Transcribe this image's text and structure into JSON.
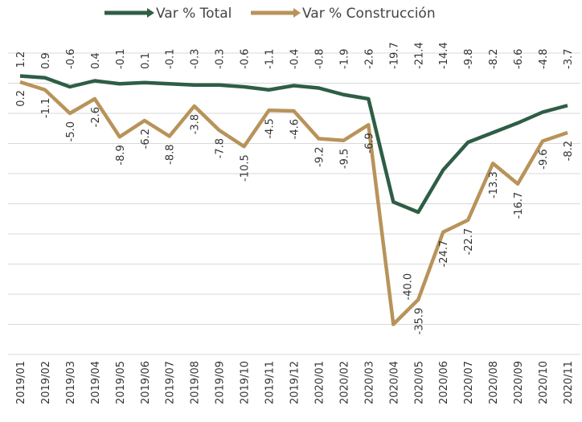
{
  "chart_data": {
    "type": "line",
    "categories": [
      "2019/01",
      "2019/02",
      "2019/03",
      "2019/04",
      "2019/05",
      "2019/06",
      "2019/07",
      "2019/08",
      "2019/09",
      "2019/10",
      "2019/11",
      "2019/12",
      "2020/01",
      "2020/02",
      "2020/03",
      "2020/04",
      "2020/05",
      "2020/06",
      "2020/07",
      "2020/08",
      "2020/09",
      "2020/10",
      "2020/11"
    ],
    "series": [
      {
        "name": "Var % Total",
        "color": "#2e5e45",
        "values": [
          1.2,
          0.9,
          -0.6,
          0.4,
          -0.1,
          0.1,
          -0.1,
          -0.3,
          -0.3,
          -0.6,
          -1.1,
          -0.4,
          -0.8,
          -1.9,
          -2.6,
          -19.7,
          -21.4,
          -14.4,
          -9.8,
          -8.2,
          -6.6,
          -4.8,
          -3.7
        ],
        "value_labels": [
          "1.2",
          "0.9",
          "-0.6",
          "0.4",
          "-0.1",
          "0.1",
          "-0.1",
          "-0.3",
          "-0.3",
          "-0.6",
          "-1.1",
          "-0.4",
          "-0.8",
          "-1.9",
          "-2.6",
          "-19.7",
          "-21.4",
          "-14.4",
          "-9.8",
          "-8.2",
          "-6.6",
          "-4.8",
          "-3.7"
        ]
      },
      {
        "name": "Var % Construcción",
        "color": "#b8935a",
        "values": [
          0.2,
          -1.1,
          -5.0,
          -2.6,
          -8.9,
          -6.2,
          -8.8,
          -3.8,
          -7.8,
          -10.5,
          -4.5,
          -4.6,
          -9.2,
          -9.5,
          -6.9,
          -40.0,
          -35.9,
          -24.7,
          -22.7,
          -13.3,
          -16.7,
          -9.6,
          -8.2
        ],
        "value_labels": [
          "0.2",
          "-1.1",
          "-5.0",
          "-2.6",
          "-8.9",
          "-6.2",
          "-8.8",
          "-3.8",
          "-7.8",
          "-10.5",
          "-4.5",
          "-4.6",
          "-9.2",
          "-9.5",
          "-6.9",
          "-40.0",
          "-35.9",
          "-24.7",
          "-22.7",
          "-13.3",
          "-16.7",
          "-9.6",
          "-8.2"
        ]
      }
    ],
    "ylim": [
      -45,
      5
    ],
    "yticks": [
      -45,
      -40,
      -35,
      -30,
      -25,
      -20,
      -15,
      -10,
      -5,
      0,
      5
    ],
    "grid": true,
    "legend": "top"
  }
}
